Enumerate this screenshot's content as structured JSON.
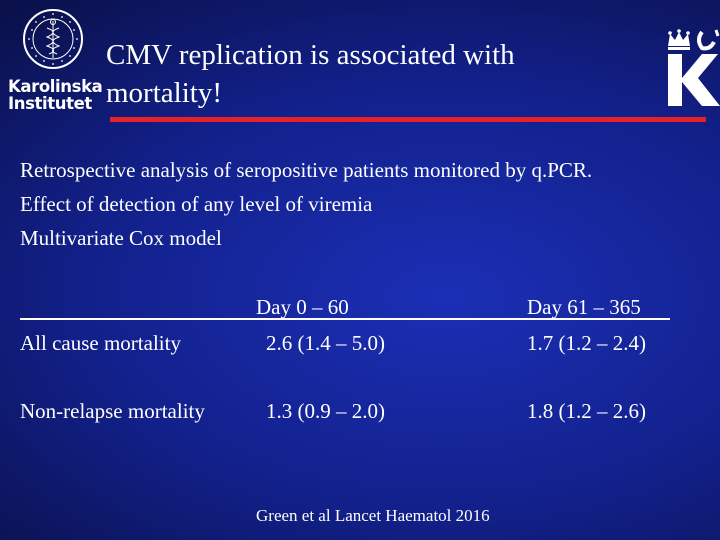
{
  "logo": {
    "line1": "Karolinska",
    "line2": "Institutet",
    "seal_text": "KAROLINSKA INSTITUTET 1810",
    "k_letter": "K"
  },
  "title": {
    "line1": "CMV replication is associated with",
    "line2": "mortality!"
  },
  "intro": [
    "Retrospective analysis of seropositive patients monitored by q.PCR.",
    "Effect of detection of any level of viremia",
    "Multivariate Cox model"
  ],
  "table": {
    "columns": [
      "Day 0 – 60",
      "Day  61 – 365"
    ],
    "rows": [
      {
        "label": "All cause mortality",
        "values": [
          "2.6 (1.4 – 5.0)",
          "1.7 (1.2 – 2.4)"
        ]
      },
      {
        "label": "Non-relapse mortality",
        "values": [
          "1.3 (0.9 – 2.0)",
          "1.8 (1.2 – 2.6)"
        ]
      }
    ]
  },
  "citation": "Green et al Lancet Haematol 2016",
  "colors": {
    "accent_rule": "#e8202a",
    "text": "#ffffff",
    "background": "#12208a"
  }
}
